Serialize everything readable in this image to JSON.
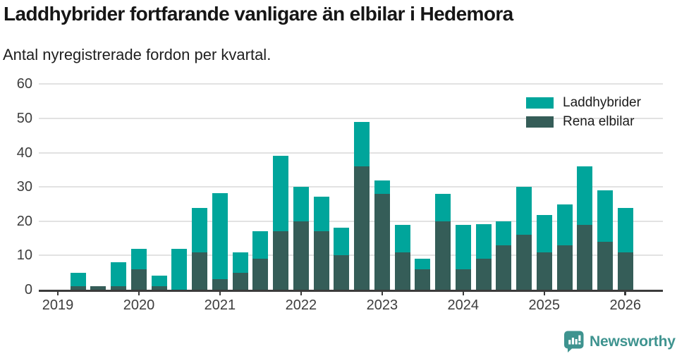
{
  "header": {
    "title": "Laddhybrider fortfarande vanligare än elbilar i Hedemora",
    "subtitle": "Antal nyregistrerade fordon per kvartal."
  },
  "legend": [
    {
      "label": "Laddhybrider",
      "color": "#00a59b"
    },
    {
      "label": "Rena elbilar",
      "color": "#355d58"
    }
  ],
  "chart_data": {
    "type": "bar",
    "stacked": true,
    "title": "Laddhybrider fortfarande vanligare än elbilar i Hedemora",
    "subtitle": "Antal nyregistrerade fordon per kvartal.",
    "xlabel": "",
    "ylabel": "",
    "ylim": [
      0,
      60
    ],
    "y_ticks": [
      "0",
      "10",
      "20",
      "30",
      "40",
      "50",
      "60"
    ],
    "x_tick_labels": [
      "2019",
      "2020",
      "2021",
      "2022",
      "2023",
      "2024",
      "2025",
      "2026"
    ],
    "grid": "horizontal",
    "legend_position": "top-right",
    "categories": [
      "2019 Q1",
      "2019 Q2",
      "2019 Q3",
      "2019 Q4",
      "2020 Q1",
      "2020 Q2",
      "2020 Q3",
      "2020 Q4",
      "2021 Q1",
      "2021 Q2",
      "2021 Q3",
      "2021 Q4",
      "2022 Q1",
      "2022 Q2",
      "2022 Q3",
      "2022 Q4",
      "2023 Q1",
      "2023 Q2",
      "2023 Q3",
      "2023 Q4",
      "2024 Q1",
      "2024 Q2",
      "2024 Q3",
      "2024 Q4",
      "2025 Q1",
      "2025 Q2",
      "2025 Q3",
      "2025 Q4",
      "2026 Q1"
    ],
    "series": [
      {
        "name": "Rena elbilar",
        "color": "#355d58",
        "stack_order": "bottom",
        "values": [
          0,
          1,
          1,
          1,
          6,
          1,
          0,
          11,
          3,
          5,
          9,
          17,
          20,
          17,
          10,
          36,
          28,
          11,
          6,
          20,
          6,
          9,
          13,
          16,
          11,
          13,
          19,
          14,
          11
        ]
      },
      {
        "name": "Laddhybrider",
        "color": "#00a59b",
        "stack_order": "top",
        "values": [
          0,
          4,
          0,
          7,
          6,
          3,
          12,
          13,
          25,
          6,
          8,
          22,
          10,
          10,
          8,
          13,
          4,
          8,
          3,
          8,
          13,
          10,
          7,
          14,
          11,
          12,
          17,
          15,
          13
        ]
      }
    ],
    "stacked_totals": [
      0,
      5,
      1,
      8,
      12,
      4,
      12,
      24,
      28,
      11,
      17,
      39,
      30,
      27,
      18,
      49,
      32,
      19,
      9,
      28,
      19,
      19,
      20,
      30,
      22,
      25,
      36,
      29,
      24
    ]
  },
  "footer": {
    "brand": "Newsworthy",
    "brand_color": "#3e938f",
    "logo_icon": "bar-chart-speech-bubble-icon"
  }
}
